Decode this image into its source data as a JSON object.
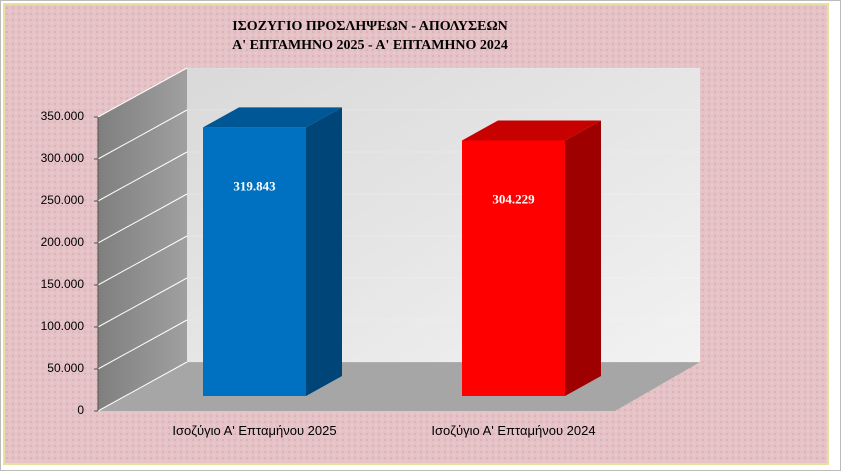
{
  "chart_data": {
    "type": "bar3d",
    "title": "ΙΣΟΖΥΓΙΟ  ΠΡΟΣΛΗΨΕΩΝ  -  ΑΠΟΛΥΣΕΩΝ",
    "subtitle": "Α' ΕΠΤΑΜΗΝΟ 2025  -  Α' ΕΠΤΑΜΗΝΟ 2024",
    "categories": [
      "Ισοζύγιο Α' Επταμήνου 2025",
      "Ισοζύγιο Α' Επταμήνου 2024"
    ],
    "values": [
      319843,
      304229
    ],
    "value_labels": [
      "319.843",
      "304.229"
    ],
    "colors": [
      "#0070c0",
      "#ff0000"
    ],
    "ylim": [
      0,
      350000
    ],
    "yticks": [
      0,
      {
        "value": 50000,
        "label": "50.000"
      },
      {
        "value": 100000,
        "label": "100.000"
      },
      {
        "value": 150000,
        "label": "150.000"
      },
      {
        "value": 200000,
        "label": "200.000"
      },
      {
        "value": 250000,
        "label": "250.000"
      },
      {
        "value": 300000,
        "label": "300.000"
      },
      {
        "value": 350000,
        "label": "350.000"
      }
    ],
    "grid": true
  }
}
